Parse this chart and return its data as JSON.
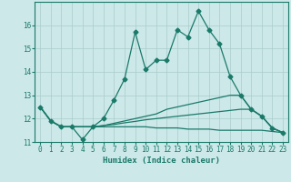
{
  "xlabel": "Humidex (Indice chaleur)",
  "background_color": "#cce8e8",
  "grid_color": "#aacccc",
  "line_color": "#1a7a6a",
  "xlim": [
    -0.5,
    23.5
  ],
  "ylim": [
    11,
    17
  ],
  "yticks": [
    11,
    12,
    13,
    14,
    15,
    16
  ],
  "xticks": [
    0,
    1,
    2,
    3,
    4,
    5,
    6,
    7,
    8,
    9,
    10,
    11,
    12,
    13,
    14,
    15,
    16,
    17,
    18,
    19,
    20,
    21,
    22,
    23
  ],
  "lines": [
    {
      "x": [
        0,
        1,
        2,
        3,
        4,
        5,
        6,
        7,
        8,
        9,
        10,
        11,
        12,
        13,
        14,
        15,
        16,
        17,
        18,
        19,
        20,
        21,
        22,
        23
      ],
      "y": [
        12.5,
        11.9,
        11.65,
        11.65,
        11.1,
        11.65,
        12.0,
        12.8,
        13.7,
        15.7,
        14.1,
        14.5,
        14.5,
        15.8,
        15.5,
        16.6,
        15.8,
        15.2,
        13.8,
        13.0,
        12.4,
        12.1,
        11.6,
        11.4
      ],
      "marker": "D",
      "markersize": 2.5
    },
    {
      "x": [
        0,
        1,
        2,
        3,
        4,
        5,
        6,
        7,
        8,
        9,
        10,
        11,
        12,
        13,
        14,
        15,
        16,
        17,
        18,
        19,
        20,
        21,
        22,
        23
      ],
      "y": [
        12.5,
        11.9,
        11.65,
        11.65,
        11.65,
        11.65,
        11.7,
        11.8,
        11.9,
        12.0,
        12.1,
        12.2,
        12.4,
        12.5,
        12.6,
        12.7,
        12.8,
        12.9,
        13.0,
        13.0,
        12.4,
        12.1,
        11.6,
        11.4
      ],
      "marker": null
    },
    {
      "x": [
        0,
        1,
        2,
        3,
        4,
        5,
        6,
        7,
        8,
        9,
        10,
        11,
        12,
        13,
        14,
        15,
        16,
        17,
        18,
        19,
        20,
        21,
        22,
        23
      ],
      "y": [
        12.5,
        11.9,
        11.65,
        11.65,
        11.65,
        11.65,
        11.7,
        11.75,
        11.82,
        11.88,
        11.95,
        12.0,
        12.05,
        12.1,
        12.15,
        12.2,
        12.25,
        12.3,
        12.35,
        12.4,
        12.4,
        12.1,
        11.6,
        11.4
      ],
      "marker": null
    },
    {
      "x": [
        0,
        1,
        2,
        3,
        4,
        5,
        6,
        7,
        8,
        9,
        10,
        11,
        12,
        13,
        14,
        15,
        16,
        17,
        18,
        19,
        20,
        21,
        22,
        23
      ],
      "y": [
        12.5,
        11.9,
        11.65,
        11.65,
        11.65,
        11.65,
        11.65,
        11.65,
        11.65,
        11.65,
        11.65,
        11.6,
        11.6,
        11.6,
        11.55,
        11.55,
        11.55,
        11.5,
        11.5,
        11.5,
        11.5,
        11.5,
        11.45,
        11.4
      ],
      "marker": null
    }
  ]
}
